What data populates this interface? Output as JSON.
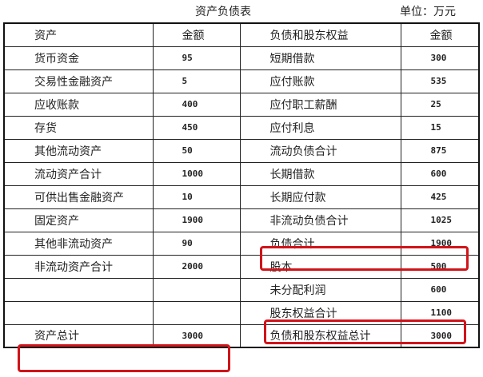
{
  "title": "资产负债表",
  "unit": "单位：万元",
  "highlight_color": "#d0141a",
  "header": [
    "资产",
    "金额",
    "负债和股东权益",
    "金额"
  ],
  "rows": [
    [
      "货币资金",
      "95",
      "短期借款",
      "300"
    ],
    [
      "交易性金融资产",
      "5",
      "应付账款",
      "535"
    ],
    [
      "应收账款",
      "400",
      "应付职工薪酬",
      "25"
    ],
    [
      "存货",
      "450",
      "应付利息",
      "15"
    ],
    [
      "其他流动资产",
      "50",
      "流动负债合计",
      "875"
    ],
    [
      "流动资产合计",
      "1000",
      "长期借款",
      "600"
    ],
    [
      "可供出售金融资产",
      "10",
      "长期应付款",
      "425"
    ],
    [
      "固定资产",
      "1900",
      "非流动负债合计",
      "1025"
    ],
    [
      "其他非流动资产",
      "90",
      "负债合计",
      "1900"
    ],
    [
      "非流动资产合计",
      "2000",
      "股本",
      "500"
    ],
    [
      "",
      "",
      "未分配利润",
      "600"
    ],
    [
      "",
      "",
      "股东权益合计",
      "1100"
    ],
    [
      "资产总计",
      "3000",
      "负债和股东权益总计",
      "3000"
    ]
  ],
  "highlighted": [
    "负债合计",
    "股东权益合计",
    "资产总计"
  ]
}
